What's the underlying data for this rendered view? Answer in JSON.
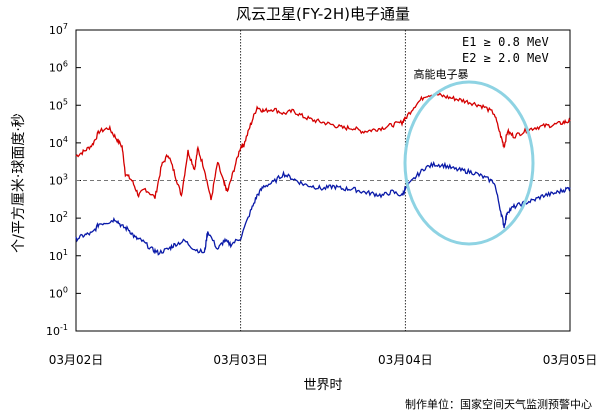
{
  "chart_data": {
    "type": "line",
    "title": "风云卫星(FY-2H)电子通量",
    "xlabel": "世界时",
    "ylabel": "个/平方厘米·球面度·秒",
    "xlim": [
      "03月02日",
      "03月05日"
    ],
    "x_ticks": [
      "03月02日",
      "03月03日",
      "03月04日",
      "03月05日"
    ],
    "yscale": "log",
    "ylim": [
      0.1,
      10000000
    ],
    "y_ticks": [
      {
        "base": "10",
        "exp": "-1"
      },
      {
        "base": "10",
        "exp": "0"
      },
      {
        "base": "10",
        "exp": "1"
      },
      {
        "base": "10",
        "exp": "2"
      },
      {
        "base": "10",
        "exp": "3"
      },
      {
        "base": "10",
        "exp": "4"
      },
      {
        "base": "10",
        "exp": "5"
      },
      {
        "base": "10",
        "exp": "6"
      },
      {
        "base": "10",
        "exp": "7"
      }
    ],
    "threshold": 1000,
    "annotation": "高能电子暴",
    "legend_position": "top-right",
    "series": [
      {
        "name": "E1 ≥ 0.8 MeV",
        "color": "#d40000",
        "x": [
          0,
          0.05,
          0.1,
          0.14,
          0.2,
          0.24,
          0.28,
          0.3,
          0.34,
          0.38,
          0.42,
          0.48,
          0.52,
          0.56,
          0.6,
          0.64,
          0.68,
          0.72,
          0.74,
          0.78,
          0.82,
          0.86,
          0.9,
          0.92,
          0.96,
          1.0,
          1.02,
          1.06,
          1.1,
          1.14,
          1.2,
          1.26,
          1.32,
          1.38,
          1.44,
          1.5,
          1.56,
          1.62,
          1.68,
          1.74,
          1.8,
          1.86,
          1.92,
          1.98,
          2.0,
          2.06,
          2.12,
          2.18,
          2.24,
          2.3,
          2.36,
          2.42,
          2.48,
          2.54,
          2.58,
          2.6,
          2.62,
          2.66,
          2.72,
          2.78,
          2.84,
          2.9,
          2.96,
          3.0
        ],
        "y": [
          4500,
          6000,
          9000,
          20000,
          25000,
          14000,
          8000,
          1500,
          1000,
          400,
          600,
          350,
          2500,
          5000,
          1500,
          400,
          6000,
          2000,
          7000,
          2000,
          300,
          3000,
          800,
          500,
          2000,
          8000,
          9000,
          30000,
          90000,
          70000,
          80000,
          60000,
          70000,
          50000,
          40000,
          35000,
          30000,
          25000,
          25000,
          20000,
          22000,
          25000,
          30000,
          35000,
          45000,
          100000,
          180000,
          200000,
          170000,
          150000,
          130000,
          110000,
          90000,
          60000,
          15000,
          8000,
          20000,
          15000,
          20000,
          25000,
          28000,
          30000,
          35000,
          38000
        ]
      },
      {
        "name": "E2 ≥ 2.0 MeV",
        "color": "#0a1aa8",
        "x": [
          0,
          0.05,
          0.1,
          0.14,
          0.2,
          0.24,
          0.28,
          0.32,
          0.36,
          0.4,
          0.46,
          0.5,
          0.56,
          0.6,
          0.66,
          0.72,
          0.78,
          0.8,
          0.86,
          0.9,
          0.94,
          1.0,
          1.06,
          1.1,
          1.14,
          1.2,
          1.26,
          1.32,
          1.38,
          1.44,
          1.5,
          1.56,
          1.62,
          1.68,
          1.74,
          1.8,
          1.86,
          1.92,
          1.98,
          2.0,
          2.06,
          2.12,
          2.18,
          2.24,
          2.3,
          2.36,
          2.42,
          2.48,
          2.54,
          2.58,
          2.6,
          2.62,
          2.66,
          2.72,
          2.78,
          2.84,
          2.9,
          2.96,
          3.0
        ],
        "y": [
          28,
          35,
          40,
          70,
          80,
          95,
          60,
          50,
          30,
          25,
          15,
          12,
          15,
          20,
          25,
          15,
          12,
          45,
          15,
          25,
          20,
          30,
          150,
          400,
          700,
          900,
          1500,
          1100,
          800,
          700,
          600,
          700,
          600,
          600,
          500,
          450,
          400,
          500,
          400,
          600,
          1200,
          2200,
          2700,
          2500,
          2000,
          1800,
          1600,
          1200,
          900,
          150,
          60,
          150,
          200,
          250,
          300,
          400,
          450,
          550,
          650
        ]
      }
    ]
  },
  "credit": "制作单位：国家空间天气监测预警中心"
}
